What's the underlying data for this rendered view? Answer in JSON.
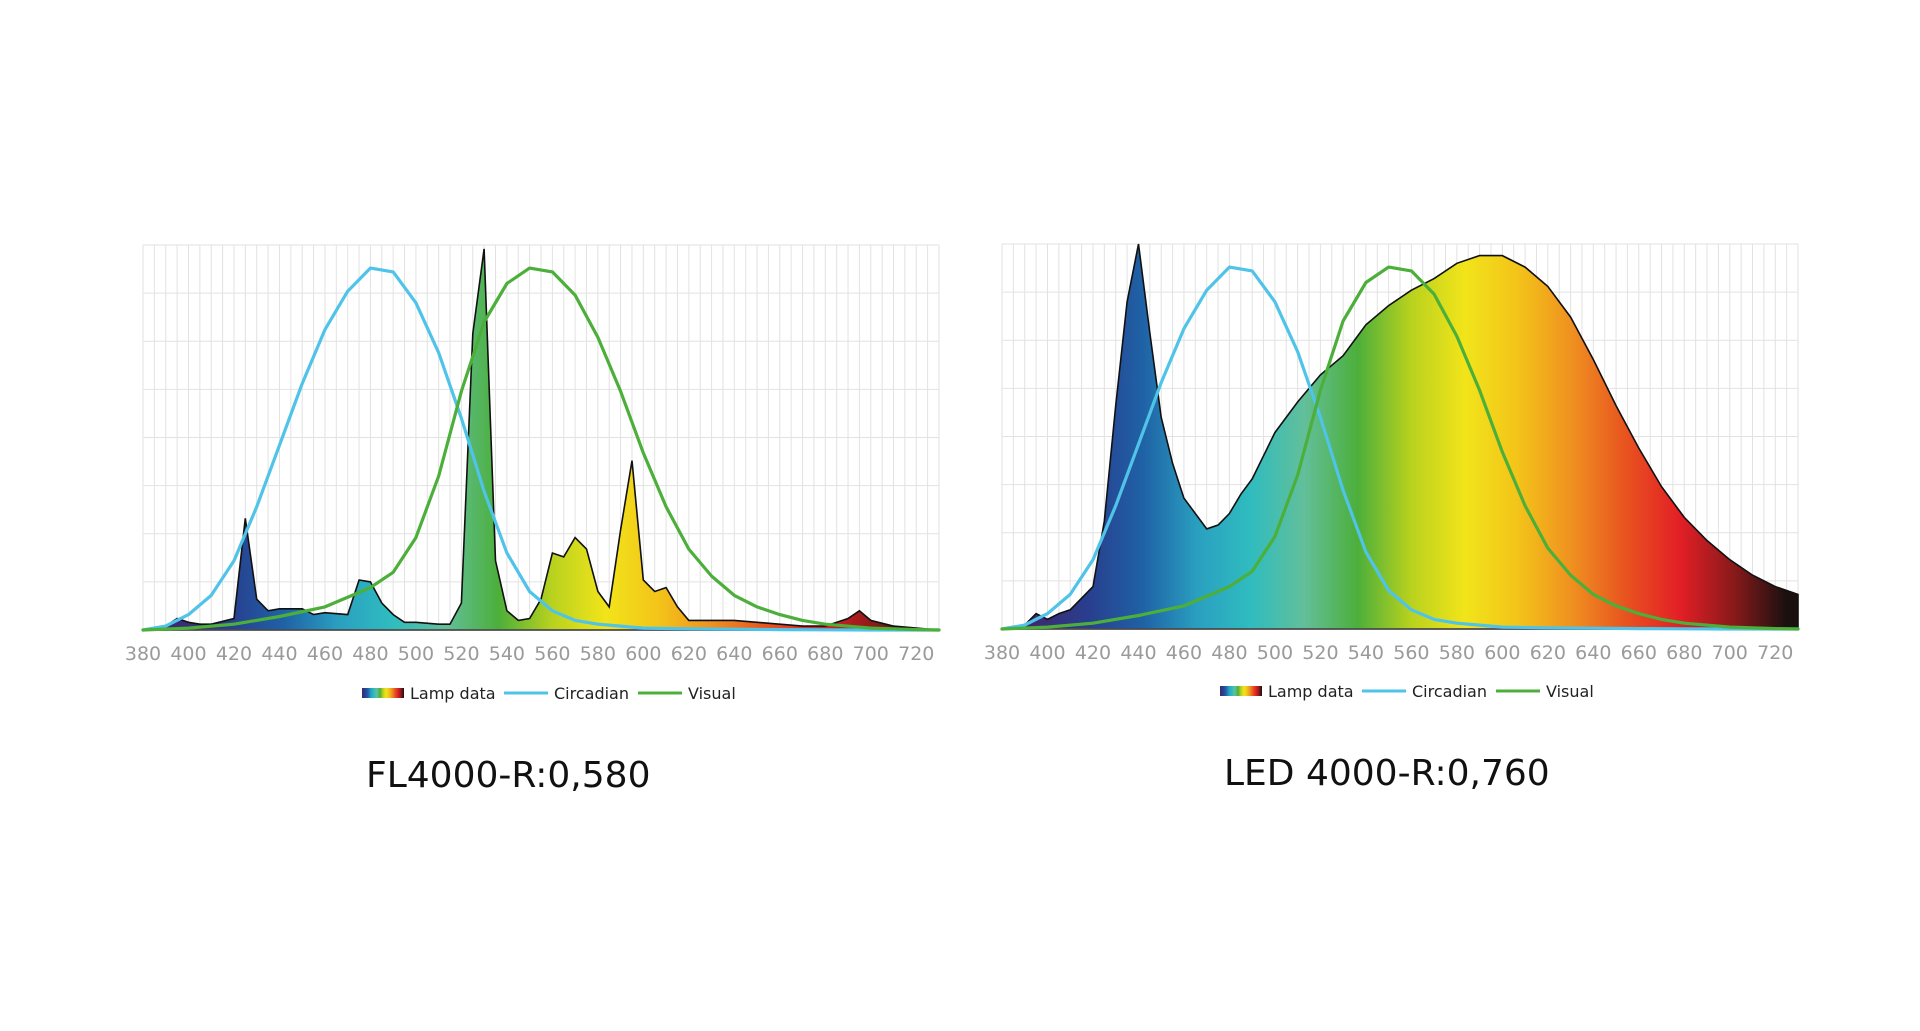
{
  "colors": {
    "circadian": "#4fc3e8",
    "visual": "#4caf3a",
    "outline": "#111111",
    "grid": "#e2e2e2",
    "spectrum_stops": [
      "#3c2a73",
      "#283f8f",
      "#1f62a6",
      "#2a9fc0",
      "#2fbcbf",
      "#62bf9a",
      "#4caf3a",
      "#b9d21e",
      "#f2e41a",
      "#f3c319",
      "#ef9020",
      "#e8531f",
      "#e31f26",
      "#8a1a1a",
      "#1a1010"
    ]
  },
  "chart_data": [
    {
      "type": "area",
      "caption": "FL4000-R:0,580",
      "xlim": [
        380,
        730
      ],
      "ylim": [
        0,
        100
      ],
      "grid": true,
      "legend_position": "bottom-center",
      "x_ticks": [
        "380",
        "400",
        "420",
        "440",
        "460",
        "480",
        "500",
        "520",
        "540",
        "560",
        "580",
        "600",
        "620",
        "640",
        "660",
        "680",
        "700",
        "720"
      ],
      "legend": [
        "Lamp data",
        "Circadian",
        "Visual"
      ],
      "lamp": {
        "x": [
          380,
          390,
          395,
          400,
          405,
          410,
          420,
          425,
          430,
          435,
          440,
          450,
          455,
          460,
          470,
          475,
          480,
          485,
          490,
          495,
          500,
          510,
          515,
          520,
          525,
          530,
          535,
          540,
          545,
          550,
          555,
          560,
          565,
          570,
          575,
          580,
          585,
          590,
          595,
          600,
          605,
          610,
          615,
          620,
          625,
          630,
          640,
          650,
          660,
          670,
          680,
          690,
          695,
          700,
          710,
          720,
          730
        ],
        "y": [
          0,
          1,
          3,
          2,
          1.5,
          1.5,
          3,
          29,
          8,
          5,
          5.5,
          5.5,
          4,
          4.5,
          4,
          13,
          12.5,
          7,
          4,
          2,
          2,
          1.5,
          1.5,
          7,
          77,
          99,
          18,
          5,
          2.5,
          3,
          8,
          20,
          19,
          24,
          21,
          10,
          6,
          26,
          44,
          13,
          10,
          11,
          6,
          2.5,
          2.5,
          2.5,
          2.5,
          2,
          1.5,
          1,
          1,
          3,
          5,
          2.5,
          1,
          0.5,
          0
        ]
      },
      "circadian_curve": {
        "x": [
          380,
          390,
          400,
          410,
          420,
          430,
          440,
          450,
          460,
          470,
          480,
          490,
          500,
          510,
          520,
          530,
          540,
          550,
          560,
          570,
          580,
          590,
          600,
          620,
          640,
          660,
          680,
          700,
          720,
          730
        ],
        "y": [
          0,
          1,
          4,
          9,
          18,
          32,
          48,
          64,
          78,
          88,
          94,
          93,
          85,
          72,
          55,
          36,
          20,
          10,
          5,
          2.5,
          1.5,
          1,
          0.5,
          0.3,
          0.2,
          0.1,
          0.05,
          0,
          0,
          0
        ]
      },
      "visual_curve": {
        "x": [
          380,
          400,
          420,
          440,
          460,
          480,
          490,
          500,
          510,
          520,
          530,
          540,
          550,
          560,
          570,
          580,
          590,
          600,
          610,
          620,
          630,
          640,
          650,
          660,
          670,
          680,
          700,
          720,
          730
        ],
        "y": [
          0,
          0.5,
          1.5,
          3.5,
          6,
          11,
          15,
          24,
          40,
          62,
          80,
          90,
          94,
          93,
          87,
          76,
          62,
          46,
          32,
          21,
          14,
          9,
          6,
          4,
          2.5,
          1.5,
          0.5,
          0.1,
          0
        ]
      }
    },
    {
      "type": "area",
      "caption": "LED 4000-R:0,760",
      "xlim": [
        380,
        730
      ],
      "ylim": [
        0,
        100
      ],
      "grid": true,
      "legend_position": "bottom-center",
      "x_ticks": [
        "380",
        "400",
        "420",
        "440",
        "460",
        "480",
        "500",
        "520",
        "540",
        "560",
        "580",
        "600",
        "620",
        "640",
        "660",
        "680",
        "700",
        "720"
      ],
      "legend": [
        "Lamp data",
        "Circadian",
        "Visual"
      ],
      "lamp": {
        "x": [
          380,
          390,
          395,
          400,
          405,
          410,
          420,
          425,
          430,
          435,
          440,
          445,
          450,
          455,
          460,
          470,
          475,
          480,
          485,
          490,
          500,
          510,
          520,
          530,
          540,
          550,
          560,
          570,
          580,
          590,
          600,
          610,
          620,
          630,
          640,
          650,
          660,
          670,
          680,
          690,
          700,
          710,
          720,
          730
        ],
        "y": [
          0,
          1,
          4,
          2.5,
          4,
          5,
          11,
          28,
          58,
          85,
          100,
          77,
          55,
          43,
          34,
          26,
          27,
          30,
          35,
          39,
          51,
          59,
          66,
          71,
          79,
          84,
          88,
          91,
          95,
          97,
          97,
          94,
          89,
          81,
          70,
          58,
          47,
          37,
          29,
          23,
          18,
          14,
          11,
          9
        ]
      },
      "circadian_curve": {
        "x": [
          380,
          390,
          400,
          410,
          420,
          430,
          440,
          450,
          460,
          470,
          480,
          490,
          500,
          510,
          520,
          530,
          540,
          550,
          560,
          570,
          580,
          590,
          600,
          620,
          640,
          660,
          680,
          700,
          720,
          730
        ],
        "y": [
          0,
          1,
          4,
          9,
          18,
          32,
          48,
          64,
          78,
          88,
          94,
          93,
          85,
          72,
          55,
          36,
          20,
          10,
          5,
          2.5,
          1.5,
          1,
          0.5,
          0.3,
          0.2,
          0.1,
          0.05,
          0,
          0,
          0
        ]
      },
      "visual_curve": {
        "x": [
          380,
          400,
          420,
          440,
          460,
          480,
          490,
          500,
          510,
          520,
          530,
          540,
          550,
          560,
          570,
          580,
          590,
          600,
          610,
          620,
          630,
          640,
          650,
          660,
          670,
          680,
          700,
          720,
          730
        ],
        "y": [
          0,
          0.5,
          1.5,
          3.5,
          6,
          11,
          15,
          24,
          40,
          62,
          80,
          90,
          94,
          93,
          87,
          76,
          62,
          46,
          32,
          21,
          14,
          9,
          6,
          4,
          2.5,
          1.5,
          0.5,
          0.1,
          0
        ]
      }
    }
  ]
}
